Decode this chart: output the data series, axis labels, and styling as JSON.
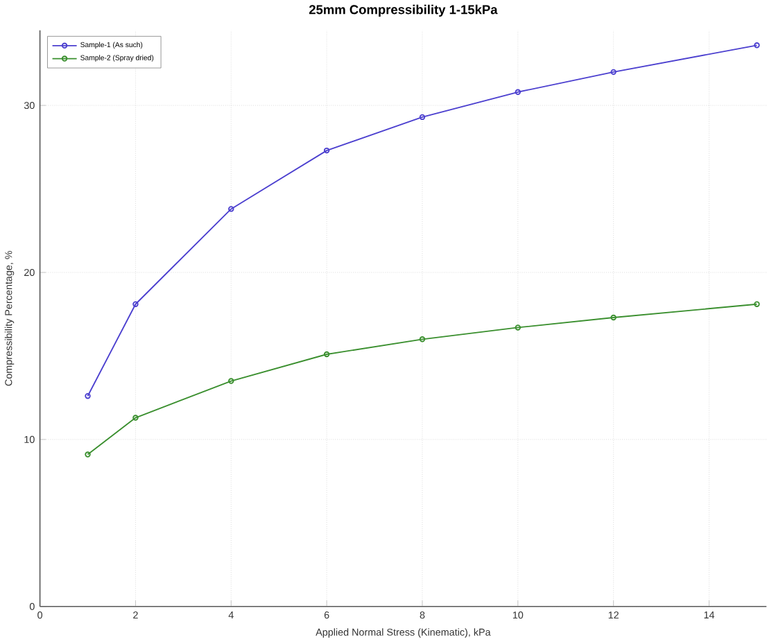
{
  "chart_data": {
    "type": "line",
    "title": "25mm Compressibility 1-15kPa",
    "xlabel": "Applied Normal Stress (Kinematic), kPa",
    "ylabel": "Compressibility Percentage, %",
    "x": [
      1,
      2,
      4,
      6,
      8,
      10,
      12,
      15
    ],
    "series": [
      {
        "name": "Sample-1 (As such)",
        "color": "#4b3fcf",
        "values": [
          12.6,
          18.1,
          23.8,
          27.3,
          29.3,
          30.8,
          32.0,
          33.6
        ]
      },
      {
        "name": "Sample-2 (Spray dried)",
        "color": "#3a8f2e",
        "values": [
          9.1,
          11.3,
          13.5,
          15.1,
          16.0,
          16.7,
          17.3,
          18.1
        ]
      }
    ],
    "xlim": [
      0,
      15.2
    ],
    "ylim": [
      0,
      34.5
    ],
    "xticks": [
      0,
      2,
      4,
      6,
      8,
      10,
      12,
      14
    ],
    "yticks": [
      0,
      10,
      20,
      30
    ],
    "grid": true,
    "legend": "top left",
    "marker": "circle",
    "line_style": "solid"
  }
}
